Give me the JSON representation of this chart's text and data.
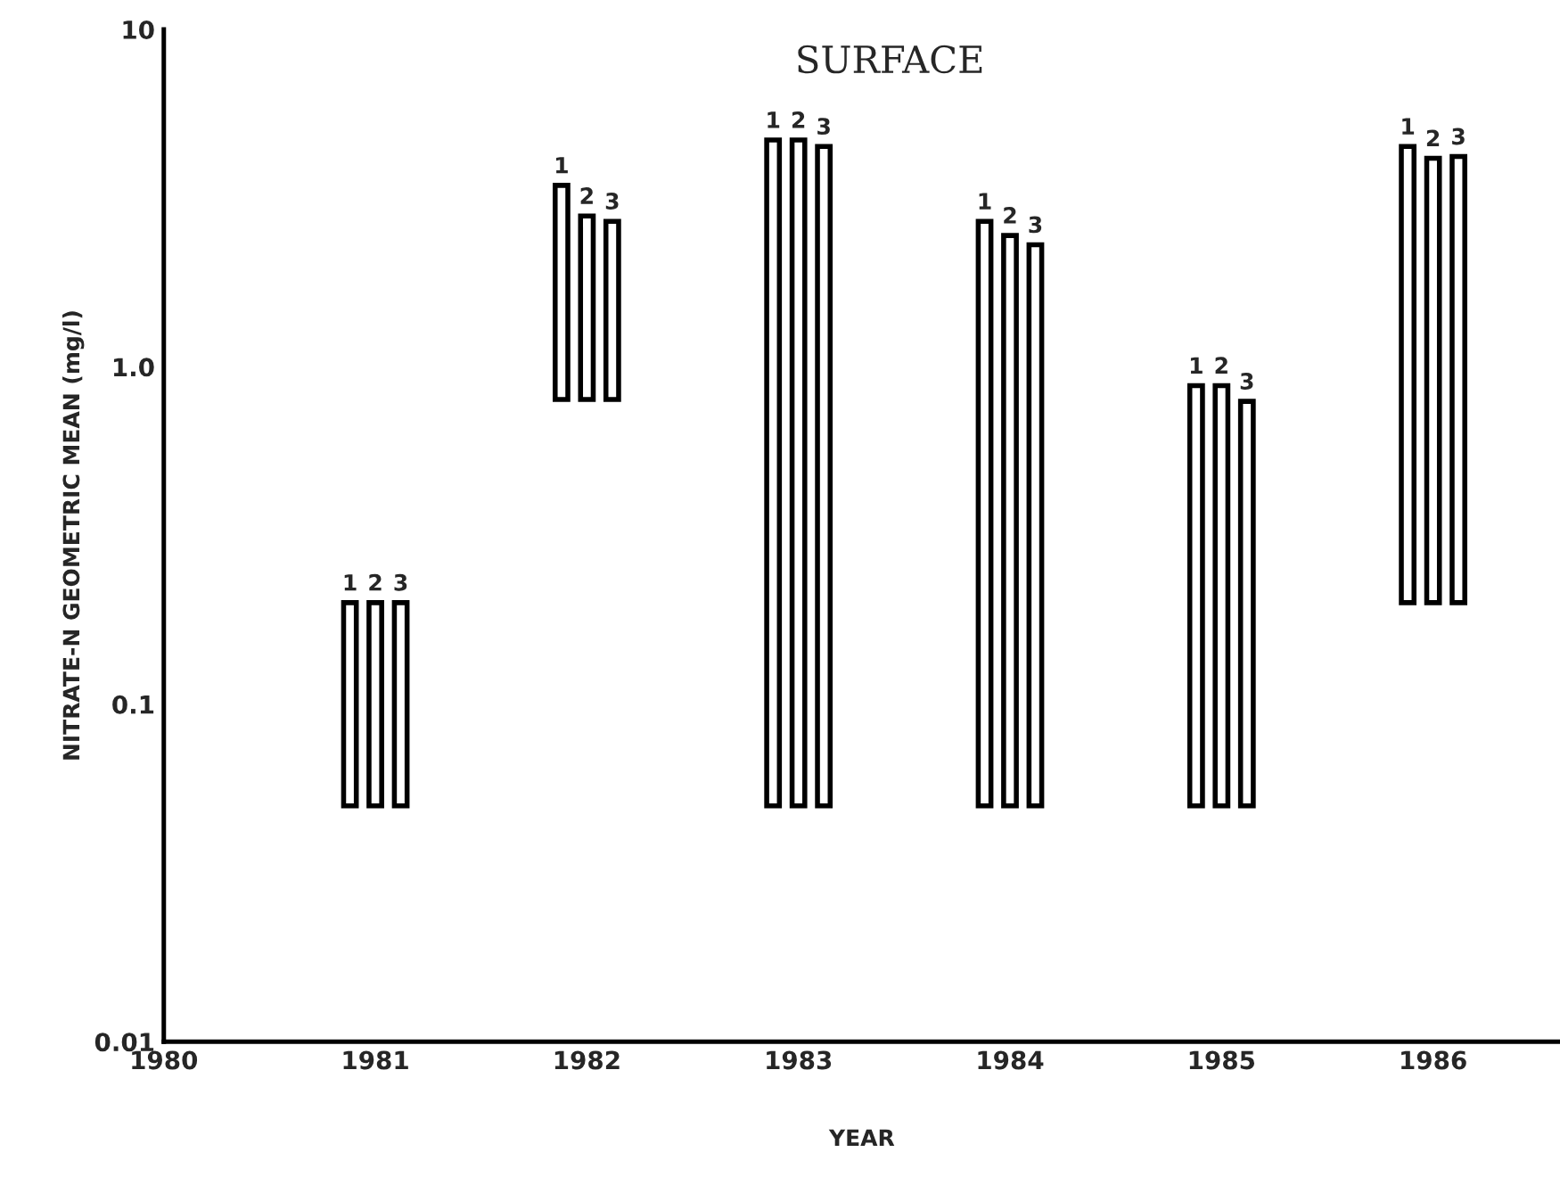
{
  "chart_data": {
    "type": "bar",
    "title": "SURFACE",
    "xlabel": "YEAR",
    "ylabel": "NITRATE-N GEOMETRIC MEAN (mg/l)",
    "x": [
      1981,
      1982,
      1983,
      1984,
      1985,
      1986
    ],
    "series": [
      {
        "name": "1",
        "color": "#000000",
        "base": [
          0.05,
          0.8,
          0.05,
          0.05,
          0.05,
          0.2
        ],
        "values": [
          0.15,
          2.65,
          4.65,
          2.65,
          0.83,
          4.3
        ]
      },
      {
        "name": "2",
        "color": "#000000",
        "base": [
          0.05,
          0.8,
          0.05,
          0.05,
          0.05,
          0.2
        ],
        "values": [
          0.15,
          2.0,
          4.65,
          2.4,
          0.83,
          3.95
        ]
      },
      {
        "name": "3",
        "color": "#000000",
        "base": [
          0.05,
          0.8,
          0.05,
          0.05,
          0.05,
          0.2
        ],
        "values": [
          0.15,
          1.9,
          4.45,
          2.25,
          0.74,
          4.0
        ]
      }
    ],
    "log": "y",
    "xlim": [
      1980,
      1986.6
    ],
    "xticks": [
      1980,
      1981,
      1982,
      1983,
      {
        "value": 1984,
        "label": "1984"
      },
      1985,
      1986
    ],
    "ylim": [
      0.01,
      10
    ],
    "yticks": [
      0.01,
      0.1,
      {
        "value": 1,
        "label": "1.0"
      },
      10
    ],
    "grid": false,
    "legend": false
  }
}
